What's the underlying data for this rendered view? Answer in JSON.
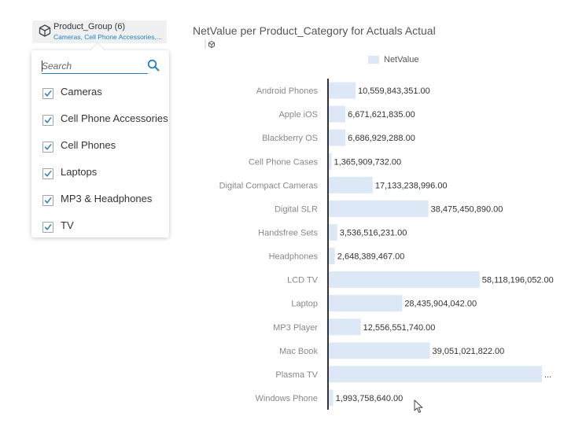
{
  "filter": {
    "title": "Product_Group (6)",
    "subtitle": "Cameras, Cell Phone Accessories,...",
    "icon": "cube-icon",
    "search_placeholder": "Search",
    "options": [
      {
        "label": "Cameras",
        "checked": true
      },
      {
        "label": "Cell Phone Accessories",
        "checked": true
      },
      {
        "label": "Cell Phones",
        "checked": true
      },
      {
        "label": "Laptops",
        "checked": true
      },
      {
        "label": "MP3 & Headphones",
        "checked": true
      },
      {
        "label": "TV",
        "checked": true
      }
    ]
  },
  "chart_data": {
    "type": "bar",
    "orientation": "horizontal",
    "title": "NetValue per Product_Category for Actuals Actual",
    "legend": [
      "NetValue"
    ],
    "legend_position": "top",
    "bar_color": "#dce8f6",
    "categories": [
      "Android Phones",
      "Apple iOS",
      "Blackberry OS",
      "Cell Phone Cases",
      "Digital Compact Cameras",
      "Digital SLR",
      "Handsfree Sets",
      "Headphones",
      "LCD TV",
      "Laptop",
      "MP3 Player",
      "Mac Book",
      "Plasma TV",
      "Windows Phone"
    ],
    "series": [
      {
        "name": "NetValue",
        "values": [
          10559843351.0,
          6671621835.0,
          6686929288.0,
          1365909732.0,
          17133238996.0,
          38475450890.0,
          3536516231.0,
          2648389467.0,
          58118196052.0,
          28435904042.0,
          12556551740.0,
          39051021822.0,
          82000000000.0,
          1993758640.0
        ]
      }
    ],
    "data_labels": [
      "10,559,843,351.00",
      "6,671,621,835.00",
      "6,686,929,288.00",
      "1,365,909,732.00",
      "17,133,238,996.00",
      "38,475,450,890.00",
      "3,536,516,231.00",
      "2,648,389,467.00",
      "58,118,196,052.00",
      "28,435,904,042.00",
      "12,556,551,740.00",
      "39,051,021,822.00",
      "...",
      "1,993,758,640.00"
    ],
    "grid": false
  }
}
